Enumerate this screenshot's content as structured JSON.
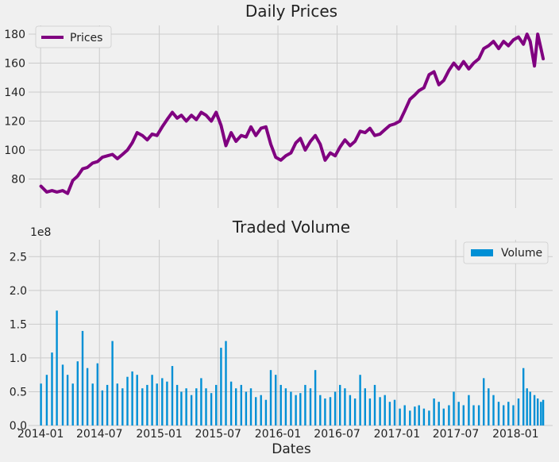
{
  "chart_data": [
    {
      "type": "line",
      "title": "Daily Prices",
      "xlabel": "",
      "ylabel": "",
      "xlim": [
        "2013-11-25",
        "2018-04-25"
      ],
      "ylim": [
        60,
        186
      ],
      "yticks": [
        80,
        100,
        120,
        140,
        160,
        180
      ],
      "grid": true,
      "legend": {
        "position": "top-left",
        "entries": [
          "Prices"
        ]
      },
      "series": [
        {
          "name": "Prices",
          "color": "#800080",
          "x": [
            "2014-01-02",
            "2014-01-20",
            "2014-02-05",
            "2014-02-20",
            "2014-03-10",
            "2014-03-25",
            "2014-04-10",
            "2014-04-25",
            "2014-05-10",
            "2014-05-25",
            "2014-06-10",
            "2014-06-25",
            "2014-07-10",
            "2014-07-25",
            "2014-08-10",
            "2014-08-25",
            "2014-09-10",
            "2014-09-25",
            "2014-10-10",
            "2014-10-25",
            "2014-11-10",
            "2014-11-25",
            "2014-12-10",
            "2014-12-25",
            "2015-01-10",
            "2015-01-25",
            "2015-02-10",
            "2015-02-25",
            "2015-03-10",
            "2015-03-25",
            "2015-04-10",
            "2015-04-25",
            "2015-05-10",
            "2015-05-25",
            "2015-06-10",
            "2015-06-25",
            "2015-07-10",
            "2015-07-25",
            "2015-08-10",
            "2015-08-25",
            "2015-09-10",
            "2015-09-25",
            "2015-10-10",
            "2015-10-25",
            "2015-11-10",
            "2015-11-25",
            "2015-12-10",
            "2015-12-25",
            "2016-01-10",
            "2016-01-25",
            "2016-02-10",
            "2016-02-25",
            "2016-03-10",
            "2016-03-25",
            "2016-04-10",
            "2016-04-25",
            "2016-05-10",
            "2016-05-25",
            "2016-06-10",
            "2016-06-25",
            "2016-07-10",
            "2016-07-25",
            "2016-08-10",
            "2016-08-25",
            "2016-09-10",
            "2016-09-25",
            "2016-10-10",
            "2016-10-25",
            "2016-11-10",
            "2016-11-25",
            "2016-12-10",
            "2016-12-25",
            "2017-01-10",
            "2017-01-25",
            "2017-02-10",
            "2017-02-25",
            "2017-03-10",
            "2017-03-25",
            "2017-04-10",
            "2017-04-25",
            "2017-05-10",
            "2017-05-25",
            "2017-06-10",
            "2017-06-25",
            "2017-07-10",
            "2017-07-25",
            "2017-08-10",
            "2017-08-25",
            "2017-09-10",
            "2017-09-25",
            "2017-10-10",
            "2017-10-25",
            "2017-11-10",
            "2017-11-25",
            "2017-12-10",
            "2017-12-25",
            "2018-01-10",
            "2018-01-25",
            "2018-02-05",
            "2018-02-15",
            "2018-02-28",
            "2018-03-10",
            "2018-03-20",
            "2018-03-27"
          ],
          "values": [
            75,
            71,
            72,
            71,
            72,
            70,
            79,
            82,
            87,
            88,
            91,
            92,
            95,
            96,
            97,
            94,
            97,
            100,
            105,
            112,
            110,
            107,
            111,
            110,
            116,
            121,
            126,
            122,
            124,
            120,
            124,
            121,
            126,
            124,
            120,
            126,
            117,
            103,
            112,
            106,
            110,
            109,
            116,
            110,
            115,
            116,
            104,
            95,
            93,
            96,
            98,
            105,
            108,
            100,
            106,
            110,
            104,
            93,
            98,
            96,
            102,
            107,
            103,
            106,
            113,
            112,
            115,
            110,
            111,
            114,
            117,
            118,
            120,
            127,
            135,
            138,
            141,
            143,
            152,
            154,
            145,
            148,
            155,
            160,
            156,
            161,
            156,
            160,
            163,
            170,
            172,
            175,
            170,
            175,
            172,
            176,
            178,
            173,
            180,
            175,
            158,
            180,
            170,
            163
          ]
        }
      ]
    },
    {
      "type": "bar",
      "title": "Traded Volume",
      "xlabel": "Dates",
      "ylabel": "",
      "y_offset_label": "1e8",
      "ylim": [
        0,
        2.75
      ],
      "yticks": [
        0.0,
        0.5,
        1.0,
        1.5,
        2.0,
        2.5
      ],
      "grid": true,
      "legend": {
        "position": "top-right",
        "entries": [
          "Volume"
        ]
      },
      "xticks": [
        "2014-01",
        "2014-07",
        "2015-01",
        "2015-07",
        "2016-01",
        "2016-07",
        "2017-01",
        "2017-07",
        "2018-01"
      ],
      "series": [
        {
          "name": "Volume",
          "color": "#008fd5",
          "x": [
            "2014-01-02",
            "2014-01-20",
            "2014-02-05",
            "2014-02-20",
            "2014-03-10",
            "2014-03-25",
            "2014-04-10",
            "2014-04-25",
            "2014-05-10",
            "2014-05-25",
            "2014-06-10",
            "2014-06-25",
            "2014-07-10",
            "2014-07-25",
            "2014-08-10",
            "2014-08-25",
            "2014-09-10",
            "2014-09-25",
            "2014-10-10",
            "2014-10-25",
            "2014-11-10",
            "2014-11-25",
            "2014-12-10",
            "2014-12-25",
            "2015-01-10",
            "2015-01-25",
            "2015-02-10",
            "2015-02-25",
            "2015-03-10",
            "2015-03-25",
            "2015-04-10",
            "2015-04-25",
            "2015-05-10",
            "2015-05-25",
            "2015-06-10",
            "2015-06-25",
            "2015-07-10",
            "2015-07-25",
            "2015-08-10",
            "2015-08-25",
            "2015-09-10",
            "2015-09-25",
            "2015-10-10",
            "2015-10-25",
            "2015-11-10",
            "2015-11-25",
            "2015-12-10",
            "2015-12-25",
            "2016-01-10",
            "2016-01-25",
            "2016-02-10",
            "2016-02-25",
            "2016-03-10",
            "2016-03-25",
            "2016-04-10",
            "2016-04-25",
            "2016-05-10",
            "2016-05-25",
            "2016-06-10",
            "2016-06-25",
            "2016-07-10",
            "2016-07-25",
            "2016-08-10",
            "2016-08-25",
            "2016-09-10",
            "2016-09-25",
            "2016-10-10",
            "2016-10-25",
            "2016-11-10",
            "2016-11-25",
            "2016-12-10",
            "2016-12-25",
            "2017-01-10",
            "2017-01-25",
            "2017-02-10",
            "2017-02-25",
            "2017-03-10",
            "2017-03-25",
            "2017-04-10",
            "2017-04-25",
            "2017-05-10",
            "2017-05-25",
            "2017-06-10",
            "2017-06-25",
            "2017-07-10",
            "2017-07-25",
            "2017-08-10",
            "2017-08-25",
            "2017-09-10",
            "2017-09-25",
            "2017-10-10",
            "2017-10-25",
            "2017-11-10",
            "2017-11-25",
            "2017-12-10",
            "2017-12-25",
            "2018-01-10",
            "2018-01-25",
            "2018-02-05",
            "2018-02-15",
            "2018-02-28",
            "2018-03-10",
            "2018-03-20",
            "2018-03-27"
          ],
          "values": [
            0.62,
            0.75,
            1.08,
            1.7,
            0.9,
            0.75,
            0.62,
            0.95,
            1.4,
            0.85,
            0.62,
            0.92,
            0.52,
            0.6,
            1.25,
            0.62,
            0.55,
            0.72,
            0.8,
            0.75,
            0.55,
            0.6,
            0.75,
            0.62,
            0.7,
            0.65,
            0.88,
            0.6,
            0.5,
            0.55,
            0.45,
            0.55,
            0.7,
            0.55,
            0.48,
            0.6,
            1.15,
            1.25,
            0.65,
            0.55,
            0.6,
            0.5,
            0.55,
            0.42,
            0.45,
            0.38,
            0.82,
            0.75,
            0.6,
            0.55,
            0.5,
            0.45,
            0.48,
            0.6,
            0.55,
            0.82,
            0.45,
            0.4,
            0.42,
            0.5,
            0.6,
            0.55,
            0.45,
            0.4,
            0.75,
            0.55,
            0.4,
            0.6,
            0.42,
            0.45,
            0.35,
            0.38,
            0.25,
            0.3,
            0.22,
            0.28,
            0.3,
            0.25,
            0.22,
            0.4,
            0.35,
            0.25,
            0.3,
            0.5,
            0.35,
            0.3,
            0.45,
            0.3,
            0.3,
            0.7,
            0.55,
            0.45,
            0.35,
            0.3,
            0.35,
            0.3,
            0.4,
            0.85,
            0.55,
            0.5,
            0.45,
            0.4,
            0.35,
            0.38
          ]
        }
      ]
    }
  ]
}
